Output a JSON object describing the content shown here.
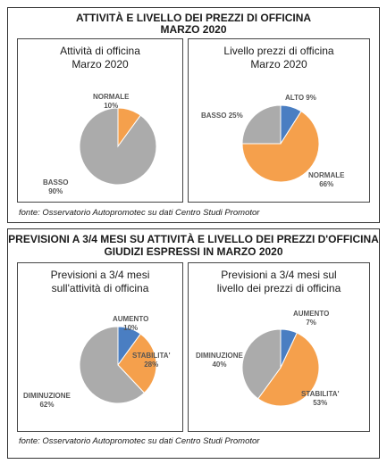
{
  "section_top": {
    "title_line1": "ATTIVITÀ E LIVELLO DEI PREZZI DI OFFICINA",
    "title_line2": "MARZO 2020",
    "source": "fonte: Osservatorio Autopromotec su dati Centro Studi Promotor"
  },
  "section_bottom": {
    "title_line1": "PREVISIONI A 3/4 MESI SU ATTIVITÀ E LIVELLO DEI PREZZI D'OFFICINA",
    "title_line2": "GIUDIZI ESPRESSI IN MARZO 2020",
    "source": "fonte: Osservatorio Autopromotec su dati Centro Studi Promotor"
  },
  "colors": {
    "blue": "#4a7ec2",
    "orange": "#f5a04c",
    "gray": "#ababab"
  },
  "chart_data": [
    {
      "type": "pie",
      "title_line1": "Attività di officina",
      "title_line2": "Marzo 2020",
      "slices": [
        {
          "label": "NORMALE",
          "pct_text": "10%",
          "value": 10,
          "color": "#f5a04c"
        },
        {
          "label": "BASSO",
          "pct_text": "90%",
          "value": 90,
          "color": "#ababab"
        }
      ]
    },
    {
      "type": "pie",
      "title_line1": "Livello prezzi di officina",
      "title_line2": "Marzo 2020",
      "slices": [
        {
          "label": "ALTO",
          "pct_text": "9%",
          "value": 9,
          "color": "#4a7ec2"
        },
        {
          "label": "NORMALE",
          "pct_text": "66%",
          "value": 66,
          "color": "#f5a04c"
        },
        {
          "label": "BASSO",
          "pct_text": "25%",
          "value": 25,
          "color": "#ababab"
        }
      ]
    },
    {
      "type": "pie",
      "title_line1": "Previsioni a 3/4 mesi",
      "title_line2": "sull'attività di officina",
      "slices": [
        {
          "label": "AUMENTO",
          "pct_text": "10%",
          "value": 10,
          "color": "#4a7ec2"
        },
        {
          "label": "STABILITA'",
          "pct_text": "28%",
          "value": 28,
          "color": "#f5a04c"
        },
        {
          "label": "DIMINUZIONE",
          "pct_text": "62%",
          "value": 62,
          "color": "#ababab"
        }
      ]
    },
    {
      "type": "pie",
      "title_line1": "Previsioni a 3/4 mesi sul",
      "title_line2": "livello dei prezzi di officina",
      "slices": [
        {
          "label": "AUMENTO",
          "pct_text": "7%",
          "value": 7,
          "color": "#4a7ec2"
        },
        {
          "label": "STABILITA'",
          "pct_text": "53%",
          "value": 53,
          "color": "#f5a04c"
        },
        {
          "label": "DIMINUZIONE",
          "pct_text": "40%",
          "value": 40,
          "color": "#ababab"
        }
      ]
    }
  ]
}
